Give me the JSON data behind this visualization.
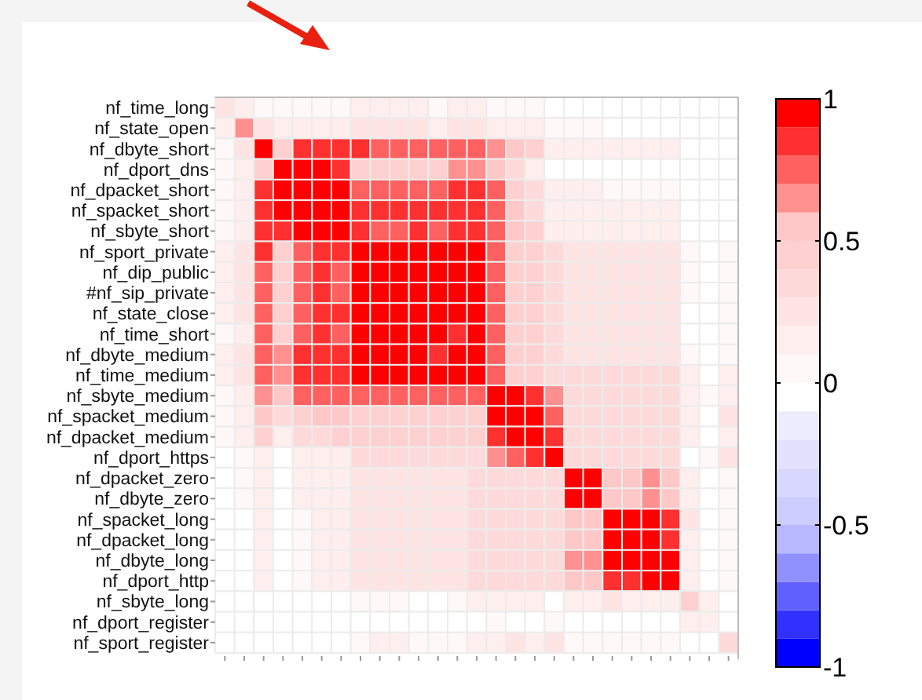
{
  "chart_data": {
    "type": "heatmap",
    "categories": [
      null,
      null,
      null,
      null,
      null,
      null,
      null,
      null,
      null,
      null,
      null,
      null,
      null,
      null,
      null,
      null,
      null,
      null,
      null,
      null,
      null,
      null,
      null,
      null,
      null,
      null,
      null
    ],
    "y_categories": [
      "nf_time_long",
      "nf_state_open",
      "nf_dbyte_short",
      "nf_dport_dns",
      "nf_dpacket_short",
      "nf_spacket_short",
      "nf_sbyte_short",
      "nf_sport_private",
      "nf_dip_public",
      "#nf_sip_private",
      "nf_state_close",
      "nf_time_short",
      "nf_dbyte_medium",
      "nf_time_medium",
      "nf_sbyte_medium",
      "nf_spacket_medium",
      "nf_dpacket_medium",
      "nf_dport_https",
      "nf_dpacket_zero",
      "nf_dbyte_zero",
      "nf_spacket_long",
      "nf_dpacket_long",
      "nf_dbyte_long",
      "nf_dport_http",
      "nf_sbyte_long",
      "nf_dport_register",
      "nf_sport_register"
    ],
    "cells": [
      [
        0.2,
        0.1,
        0.05,
        0.05,
        0.05,
        0.05,
        0.05,
        0.1,
        0.1,
        0.1,
        0.1,
        0.05,
        0.1,
        0.1,
        0.05,
        0.05,
        0.05,
        0,
        0,
        0,
        0,
        0,
        0,
        0,
        0,
        0,
        0
      ],
      [
        0.1,
        0.65,
        0.2,
        0.1,
        0.15,
        0.15,
        0.15,
        0.2,
        0.2,
        0.2,
        0.2,
        0.15,
        0.2,
        0.2,
        0.15,
        0.15,
        0.1,
        0.05,
        0.05,
        0.05,
        0,
        0,
        0,
        0,
        0,
        0,
        0
      ],
      [
        0.05,
        0.2,
        1,
        0.4,
        0.8,
        0.85,
        0.8,
        0.8,
        0.75,
        0.75,
        0.75,
        0.75,
        0.7,
        0.75,
        0.6,
        0.55,
        0.45,
        0.15,
        0.15,
        0.15,
        0.1,
        0.1,
        0.1,
        0.1,
        0,
        0,
        0
      ],
      [
        0.05,
        0.1,
        0.4,
        1,
        1,
        0.9,
        0.8,
        0.45,
        0.4,
        0.4,
        0.45,
        0.4,
        0.65,
        0.6,
        0.5,
        0.3,
        0.15,
        0,
        0,
        0,
        0,
        0,
        0,
        0,
        0,
        0,
        0
      ],
      [
        0.05,
        0.15,
        0.8,
        1,
        1,
        0.95,
        0.9,
        0.75,
        0.7,
        0.7,
        0.75,
        0.7,
        0.8,
        0.8,
        0.7,
        0.45,
        0.35,
        0.15,
        0.1,
        0.1,
        0.05,
        0.05,
        0.05,
        0.05,
        0,
        0,
        0
      ],
      [
        0.05,
        0.15,
        0.85,
        0.9,
        0.95,
        1,
        0.95,
        0.85,
        0.8,
        0.8,
        0.85,
        0.8,
        0.85,
        0.85,
        0.75,
        0.5,
        0.35,
        0.15,
        0.15,
        0.15,
        0.1,
        0.1,
        0.1,
        0.1,
        0,
        0,
        0
      ],
      [
        0.05,
        0.15,
        0.8,
        0.8,
        0.9,
        0.95,
        1,
        0.8,
        0.75,
        0.75,
        0.8,
        0.75,
        0.8,
        0.85,
        0.7,
        0.5,
        0.4,
        0.15,
        0.15,
        0.15,
        0.1,
        0.1,
        0.1,
        0.1,
        0,
        0,
        0
      ],
      [
        0.1,
        0.2,
        0.8,
        0.45,
        0.75,
        0.85,
        0.8,
        1,
        0.95,
        0.95,
        0.95,
        0.9,
        0.9,
        0.95,
        0.7,
        0.45,
        0.4,
        0.3,
        0.25,
        0.25,
        0.25,
        0.25,
        0.25,
        0.25,
        0.05,
        0,
        0.05
      ],
      [
        0.1,
        0.2,
        0.75,
        0.4,
        0.7,
        0.8,
        0.75,
        0.95,
        1,
        1,
        0.95,
        0.95,
        0.9,
        0.95,
        0.7,
        0.45,
        0.4,
        0.3,
        0.25,
        0.25,
        0.25,
        0.25,
        0.25,
        0.25,
        0.05,
        0,
        0.05
      ],
      [
        0.1,
        0.2,
        0.75,
        0.4,
        0.7,
        0.8,
        0.75,
        0.95,
        1,
        1,
        0.95,
        0.95,
        0.9,
        0.95,
        0.7,
        0.45,
        0.4,
        0.3,
        0.25,
        0.25,
        0.25,
        0.25,
        0.25,
        0.25,
        0.05,
        0,
        0.05
      ],
      [
        0.1,
        0.2,
        0.75,
        0.45,
        0.75,
        0.85,
        0.8,
        0.95,
        0.95,
        0.95,
        1,
        0.95,
        0.9,
        0.95,
        0.7,
        0.45,
        0.4,
        0.3,
        0.2,
        0.2,
        0.2,
        0.2,
        0.2,
        0.2,
        0,
        0,
        0.05
      ],
      [
        0.05,
        0.15,
        0.75,
        0.4,
        0.7,
        0.8,
        0.75,
        0.9,
        0.95,
        0.95,
        0.95,
        1,
        0.85,
        0.95,
        0.7,
        0.45,
        0.4,
        0.3,
        0.2,
        0.2,
        0.2,
        0.2,
        0.2,
        0.2,
        0,
        0,
        0.05
      ],
      [
        0.1,
        0.2,
        0.7,
        0.65,
        0.8,
        0.85,
        0.8,
        0.9,
        0.9,
        0.9,
        0.9,
        0.85,
        1,
        0.95,
        0.7,
        0.45,
        0.45,
        0.3,
        0.2,
        0.2,
        0.2,
        0.2,
        0.2,
        0.25,
        0.05,
        0,
        0.05
      ],
      [
        0.1,
        0.2,
        0.75,
        0.6,
        0.8,
        0.85,
        0.85,
        0.95,
        0.95,
        0.95,
        0.95,
        0.95,
        0.95,
        1,
        0.75,
        0.45,
        0.45,
        0.35,
        0.3,
        0.3,
        0.3,
        0.3,
        0.3,
        0.3,
        0.1,
        0,
        0.1
      ],
      [
        0.05,
        0.15,
        0.6,
        0.5,
        0.7,
        0.75,
        0.7,
        0.7,
        0.7,
        0.7,
        0.7,
        0.7,
        0.7,
        0.75,
        1,
        0.9,
        0.85,
        0.65,
        0.3,
        0.3,
        0.3,
        0.3,
        0.3,
        0.3,
        0.1,
        0.05,
        0.15
      ],
      [
        0.05,
        0.15,
        0.55,
        0.3,
        0.45,
        0.5,
        0.5,
        0.45,
        0.45,
        0.45,
        0.45,
        0.45,
        0.45,
        0.45,
        0.9,
        1,
        1,
        0.75,
        0.3,
        0.3,
        0.3,
        0.3,
        0.3,
        0.3,
        0.1,
        0,
        0.2
      ],
      [
        0.05,
        0.1,
        0.45,
        0.15,
        0.35,
        0.35,
        0.4,
        0.4,
        0.4,
        0.4,
        0.4,
        0.4,
        0.45,
        0.45,
        0.85,
        1,
        1,
        0.85,
        0.3,
        0.3,
        0.3,
        0.3,
        0.3,
        0.3,
        0.1,
        0,
        0.15
      ],
      [
        0,
        0.05,
        0.15,
        0,
        0.15,
        0.15,
        0.15,
        0.3,
        0.3,
        0.3,
        0.3,
        0.3,
        0.3,
        0.35,
        0.65,
        0.75,
        0.85,
        1,
        0.35,
        0.35,
        0.3,
        0.3,
        0.3,
        0.35,
        0,
        0.05,
        0.25
      ],
      [
        0,
        0.05,
        0.15,
        0,
        0.1,
        0.15,
        0.15,
        0.25,
        0.25,
        0.25,
        0.2,
        0.2,
        0.2,
        0.3,
        0.3,
        0.3,
        0.3,
        0.35,
        1,
        1,
        0.55,
        0.55,
        0.6,
        0.5,
        0.1,
        0,
        0.05
      ],
      [
        0,
        0.05,
        0.15,
        0,
        0.1,
        0.15,
        0.15,
        0.25,
        0.25,
        0.25,
        0.2,
        0.2,
        0.2,
        0.3,
        0.3,
        0.3,
        0.3,
        0.35,
        1,
        1,
        0.55,
        0.55,
        0.6,
        0.5,
        0.1,
        0,
        0.05
      ],
      [
        0,
        0,
        0.1,
        0,
        0.05,
        0.1,
        0.1,
        0.25,
        0.25,
        0.25,
        0.2,
        0.2,
        0.2,
        0.3,
        0.3,
        0.3,
        0.3,
        0.3,
        0.55,
        0.55,
        1,
        1,
        0.95,
        0.8,
        0.2,
        0,
        0.05
      ],
      [
        0,
        0,
        0.1,
        0,
        0.05,
        0.1,
        0.1,
        0.25,
        0.25,
        0.25,
        0.2,
        0.2,
        0.2,
        0.3,
        0.3,
        0.3,
        0.3,
        0.3,
        0.55,
        0.55,
        1,
        1,
        0.95,
        0.85,
        0.1,
        0,
        0.05
      ],
      [
        0,
        0,
        0.1,
        0,
        0.05,
        0.1,
        0.1,
        0.25,
        0.25,
        0.25,
        0.2,
        0.2,
        0.2,
        0.3,
        0.3,
        0.3,
        0.3,
        0.3,
        0.6,
        0.6,
        0.95,
        0.95,
        1,
        0.9,
        0.1,
        0,
        0.05
      ],
      [
        0,
        0,
        0.1,
        0,
        0.05,
        0.1,
        0.1,
        0.25,
        0.25,
        0.25,
        0.2,
        0.2,
        0.25,
        0.3,
        0.3,
        0.3,
        0.3,
        0.35,
        0.5,
        0.5,
        0.8,
        0.85,
        0.9,
        1,
        0.1,
        0,
        0.05
      ],
      [
        0,
        0,
        0,
        0,
        0,
        0,
        0,
        0.05,
        0.05,
        0.05,
        0,
        0,
        0.05,
        0.1,
        0.1,
        0.1,
        0.1,
        0,
        0.1,
        0.1,
        0.2,
        0.1,
        0.1,
        0.1,
        0.45,
        0.1,
        0
      ],
      [
        0,
        0,
        0,
        0,
        0,
        0,
        0,
        0,
        0,
        0,
        0,
        0,
        0,
        0,
        0.05,
        0,
        0,
        0.05,
        0,
        0,
        0,
        0,
        0,
        0,
        0.1,
        0.1,
        0
      ],
      [
        0,
        0,
        0,
        0,
        0,
        0,
        0,
        0.05,
        0.1,
        0.1,
        0.05,
        0.05,
        0.05,
        0.1,
        0.15,
        0.2,
        0.15,
        0.25,
        0.05,
        0.05,
        0.05,
        0.05,
        0.05,
        0.05,
        0,
        0,
        0.35
      ]
    ],
    "clim": [
      -1,
      1
    ],
    "cticks": [
      -1,
      -0.5,
      0,
      0.5,
      1
    ],
    "tick_labels": "y"
  }
}
